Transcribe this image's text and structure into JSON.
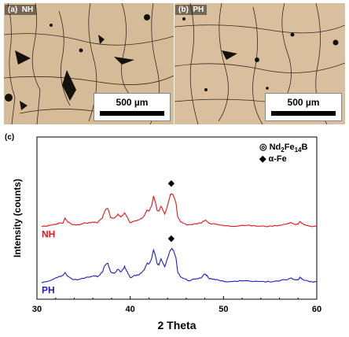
{
  "panels": [
    {
      "label": "(a)  NH",
      "scale_bar": "500 µm"
    },
    {
      "label": "(b)  PH",
      "scale_bar": "500 µm"
    }
  ],
  "chart_data": {
    "type": "line",
    "panel_label": "(c)",
    "xlabel": "2 Theta",
    "ylabel": "Intensity (counts)",
    "xlim": [
      30,
      60
    ],
    "xticks": [
      30,
      40,
      50,
      60
    ],
    "grid": false,
    "legend": {
      "placement": "top-right",
      "entries": [
        {
          "marker": "◎",
          "text": "Nd",
          "sub1": "2",
          "mid": "Fe",
          "sub2": "14",
          "end": "B"
        },
        {
          "marker": "◆",
          "text": "α-Fe"
        }
      ]
    },
    "series": [
      {
        "name": "NH",
        "color": "#e8141a",
        "offset": 1.0,
        "x": [
          30.5,
          31.0,
          31.5,
          32.0,
          32.3,
          32.8,
          33.0,
          33.3,
          33.8,
          34.5,
          35.0,
          35.5,
          36.0,
          36.5,
          37.0,
          37.3,
          37.6,
          37.9,
          38.3,
          38.7,
          39.0,
          39.4,
          39.7,
          40.0,
          40.5,
          41.0,
          41.5,
          41.8,
          42.0,
          42.3,
          42.5,
          42.7,
          42.9,
          43.1,
          43.3,
          43.5,
          43.7,
          44.0,
          44.3,
          44.5,
          44.7,
          44.9,
          45.1,
          45.4,
          45.8,
          46.3,
          47.0,
          47.6,
          48.0,
          48.2,
          48.5,
          49.0,
          49.5,
          50.0,
          51.0,
          52.0,
          53.0,
          54.0,
          55.0,
          56.0,
          56.8,
          57.2,
          57.6,
          58.0,
          58.2,
          58.5,
          59.0,
          59.5,
          60.0
        ],
        "y": [
          0.02,
          0.02,
          0.04,
          0.05,
          0.07,
          0.08,
          0.16,
          0.1,
          0.05,
          0.05,
          0.07,
          0.08,
          0.09,
          0.09,
          0.16,
          0.3,
          0.34,
          0.18,
          0.16,
          0.23,
          0.18,
          0.26,
          0.17,
          0.08,
          0.12,
          0.13,
          0.2,
          0.31,
          0.29,
          0.38,
          0.55,
          0.45,
          0.3,
          0.3,
          0.38,
          0.32,
          0.24,
          0.38,
          0.58,
          0.6,
          0.54,
          0.44,
          0.18,
          0.1,
          0.06,
          0.04,
          0.06,
          0.08,
          0.13,
          0.11,
          0.07,
          0.06,
          0.05,
          0.03,
          0.02,
          0.04,
          0.03,
          0.02,
          0.02,
          0.04,
          0.06,
          0.09,
          0.05,
          0.06,
          0.1,
          0.06,
          0.03,
          0.02,
          0.02
        ]
      },
      {
        "name": "PH",
        "color": "#1c1ccf",
        "offset": 0.0,
        "x": [
          30.5,
          31.0,
          31.5,
          32.0,
          32.3,
          32.8,
          33.0,
          33.3,
          33.8,
          34.5,
          35.0,
          35.5,
          36.0,
          36.5,
          37.0,
          37.3,
          37.6,
          37.9,
          38.3,
          38.7,
          39.0,
          39.4,
          39.7,
          40.0,
          40.5,
          41.0,
          41.5,
          41.8,
          42.0,
          42.3,
          42.5,
          42.7,
          42.9,
          43.1,
          43.3,
          43.5,
          43.7,
          44.0,
          44.3,
          44.5,
          44.7,
          44.9,
          45.1,
          45.4,
          45.8,
          46.3,
          47.0,
          47.6,
          48.0,
          48.2,
          48.5,
          49.0,
          49.5,
          50.0,
          51.0,
          52.0,
          53.0,
          54.0,
          55.0,
          56.0,
          56.8,
          57.2,
          57.6,
          58.0,
          58.2,
          58.5,
          59.0,
          59.5,
          60.0
        ],
        "y": [
          0.02,
          0.03,
          0.06,
          0.09,
          0.12,
          0.14,
          0.2,
          0.12,
          0.08,
          0.07,
          0.1,
          0.11,
          0.14,
          0.12,
          0.2,
          0.33,
          0.36,
          0.2,
          0.18,
          0.26,
          0.2,
          0.3,
          0.2,
          0.1,
          0.14,
          0.16,
          0.24,
          0.36,
          0.34,
          0.45,
          0.6,
          0.5,
          0.34,
          0.34,
          0.44,
          0.36,
          0.3,
          0.45,
          0.6,
          0.62,
          0.56,
          0.46,
          0.2,
          0.12,
          0.08,
          0.05,
          0.08,
          0.1,
          0.17,
          0.14,
          0.09,
          0.07,
          0.06,
          0.04,
          0.03,
          0.05,
          0.04,
          0.03,
          0.03,
          0.05,
          0.07,
          0.1,
          0.06,
          0.07,
          0.11,
          0.07,
          0.04,
          0.03,
          0.03
        ]
      }
    ],
    "annotations": [
      {
        "symbol": "◆",
        "series": "NH",
        "x": 44.4
      },
      {
        "symbol": "◆",
        "series": "PH",
        "x": 44.4
      }
    ]
  }
}
